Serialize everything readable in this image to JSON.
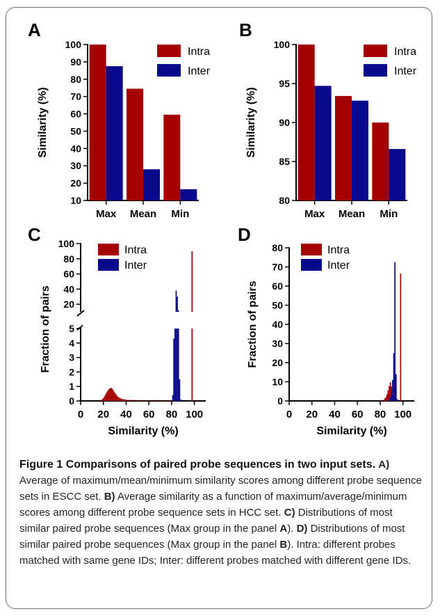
{
  "colors": {
    "intra": "#a50000",
    "inter": "#0a0a8c",
    "axis": "#000000"
  },
  "chart_data": [
    {
      "panel": "A",
      "type": "bar",
      "categories": [
        "Max",
        "Mean",
        "Min"
      ],
      "series": [
        {
          "name": "Intra",
          "values": [
            100,
            74.5,
            59.5
          ]
        },
        {
          "name": "Inter",
          "values": [
            87.5,
            28,
            16.5
          ]
        }
      ],
      "ylabel": "Similarity (%)",
      "ylim": [
        10,
        100
      ],
      "yticks": [
        "100",
        "90",
        "80",
        "70",
        "60",
        "50",
        "40",
        "30",
        "20",
        "10"
      ],
      "legend": "top-right"
    },
    {
      "panel": "B",
      "type": "bar",
      "categories": [
        "Max",
        "Mean",
        "Min"
      ],
      "series": [
        {
          "name": "Intra",
          "values": [
            100,
            93.4,
            90.0
          ]
        },
        {
          "name": "Inter",
          "values": [
            94.7,
            92.8,
            86.6
          ]
        }
      ],
      "ylabel": "Similarity (%)",
      "ylim": [
        80,
        100
      ],
      "yticks": [
        "100",
        "95",
        "90",
        "85",
        "80"
      ],
      "legend": "top-right"
    },
    {
      "panel": "C",
      "type": "bar",
      "subtype": "histogram",
      "xlabel": "Similarity (%)",
      "ylabel": "Fraction of pairs",
      "xlim": [
        0,
        110
      ],
      "xticks": [
        "0",
        "20",
        "40",
        "60",
        "80",
        "100"
      ],
      "yaxis_break": true,
      "ylim_lower": [
        0,
        5
      ],
      "ylim_upper": [
        10,
        100
      ],
      "yticks_lower": [
        "0",
        "1",
        "2",
        "3",
        "4",
        "5"
      ],
      "yticks_upper": [
        "20",
        "40",
        "60",
        "80",
        "100"
      ],
      "legend": "top-left",
      "series": [
        {
          "name": "Intra",
          "x": [
            18,
            19,
            20,
            21,
            22,
            23,
            24,
            25,
            26,
            27,
            28,
            29,
            30,
            31,
            32,
            33,
            34,
            35,
            36,
            37,
            38,
            39,
            40,
            42,
            44,
            46,
            48,
            50,
            52,
            54,
            56,
            58,
            60,
            62,
            64,
            66,
            68,
            70,
            72,
            74,
            76,
            78,
            80,
            98
          ],
          "values": [
            0.06,
            0.12,
            0.2,
            0.32,
            0.46,
            0.6,
            0.72,
            0.82,
            0.88,
            0.9,
            0.82,
            0.7,
            0.58,
            0.46,
            0.36,
            0.28,
            0.22,
            0.18,
            0.15,
            0.13,
            0.11,
            0.1,
            0.09,
            0.08,
            0.07,
            0.07,
            0.06,
            0.06,
            0.06,
            0.05,
            0.05,
            0.05,
            0.05,
            0.04,
            0.04,
            0.04,
            0.04,
            0.04,
            0.04,
            0.04,
            0.04,
            0.04,
            0.04,
            90
          ]
        },
        {
          "name": "Inter",
          "x": [
            81,
            82,
            83,
            84,
            85,
            86,
            87,
            88
          ],
          "values": [
            0.4,
            4.3,
            10,
            38,
            30,
            12,
            1.5,
            0.1
          ]
        }
      ]
    },
    {
      "panel": "D",
      "type": "bar",
      "subtype": "histogram",
      "xlabel": "Similarity (%)",
      "ylabel": "Fraction of pairs",
      "xlim": [
        0,
        110
      ],
      "ylim": [
        0,
        80
      ],
      "xticks": [
        "0",
        "20",
        "40",
        "60",
        "80",
        "100"
      ],
      "yticks": [
        "80",
        "70",
        "60",
        "50",
        "40",
        "30",
        "20",
        "10",
        "0"
      ],
      "legend": "top-left",
      "series": [
        {
          "name": "Intra",
          "x": [
            80,
            82,
            84,
            85,
            86,
            87,
            88,
            89,
            90,
            91,
            98
          ],
          "values": [
            0.3,
            0.6,
            1.2,
            2.0,
            3.5,
            5.5,
            7.8,
            9.8,
            7.5,
            3.0,
            66.5
          ]
        },
        {
          "name": "Inter",
          "x": [
            88,
            89,
            90,
            91,
            92,
            93,
            94,
            95
          ],
          "values": [
            0.8,
            1.8,
            4.0,
            11.0,
            25.0,
            72.5,
            14.0,
            1.0
          ]
        }
      ]
    }
  ],
  "caption": {
    "label": "Figure 1",
    "title": "Comparisons of paired probe sequences in two input sets.",
    "items": [
      {
        "ref": "A)",
        "text": "Average of maximum/mean/minimum similarity scores among different probe sequence sets in ESCC set."
      },
      {
        "ref": "B)",
        "text": "Average similarity as a function of maximum/average/minimum scores among different probe sequence sets in HCC set."
      },
      {
        "ref": "C)",
        "text": "Distributions of most similar paired probe sequences (Max group in the panel",
        "panel": "A",
        "end": ")."
      },
      {
        "ref": "D)",
        "text": "Distributions of most similar paired probe sequences (Max group in the panel",
        "panel": "B",
        "end": ")."
      }
    ],
    "tail": "Intra: different probes matched with same gene IDs; Inter: different probes matched with different gene IDs."
  }
}
